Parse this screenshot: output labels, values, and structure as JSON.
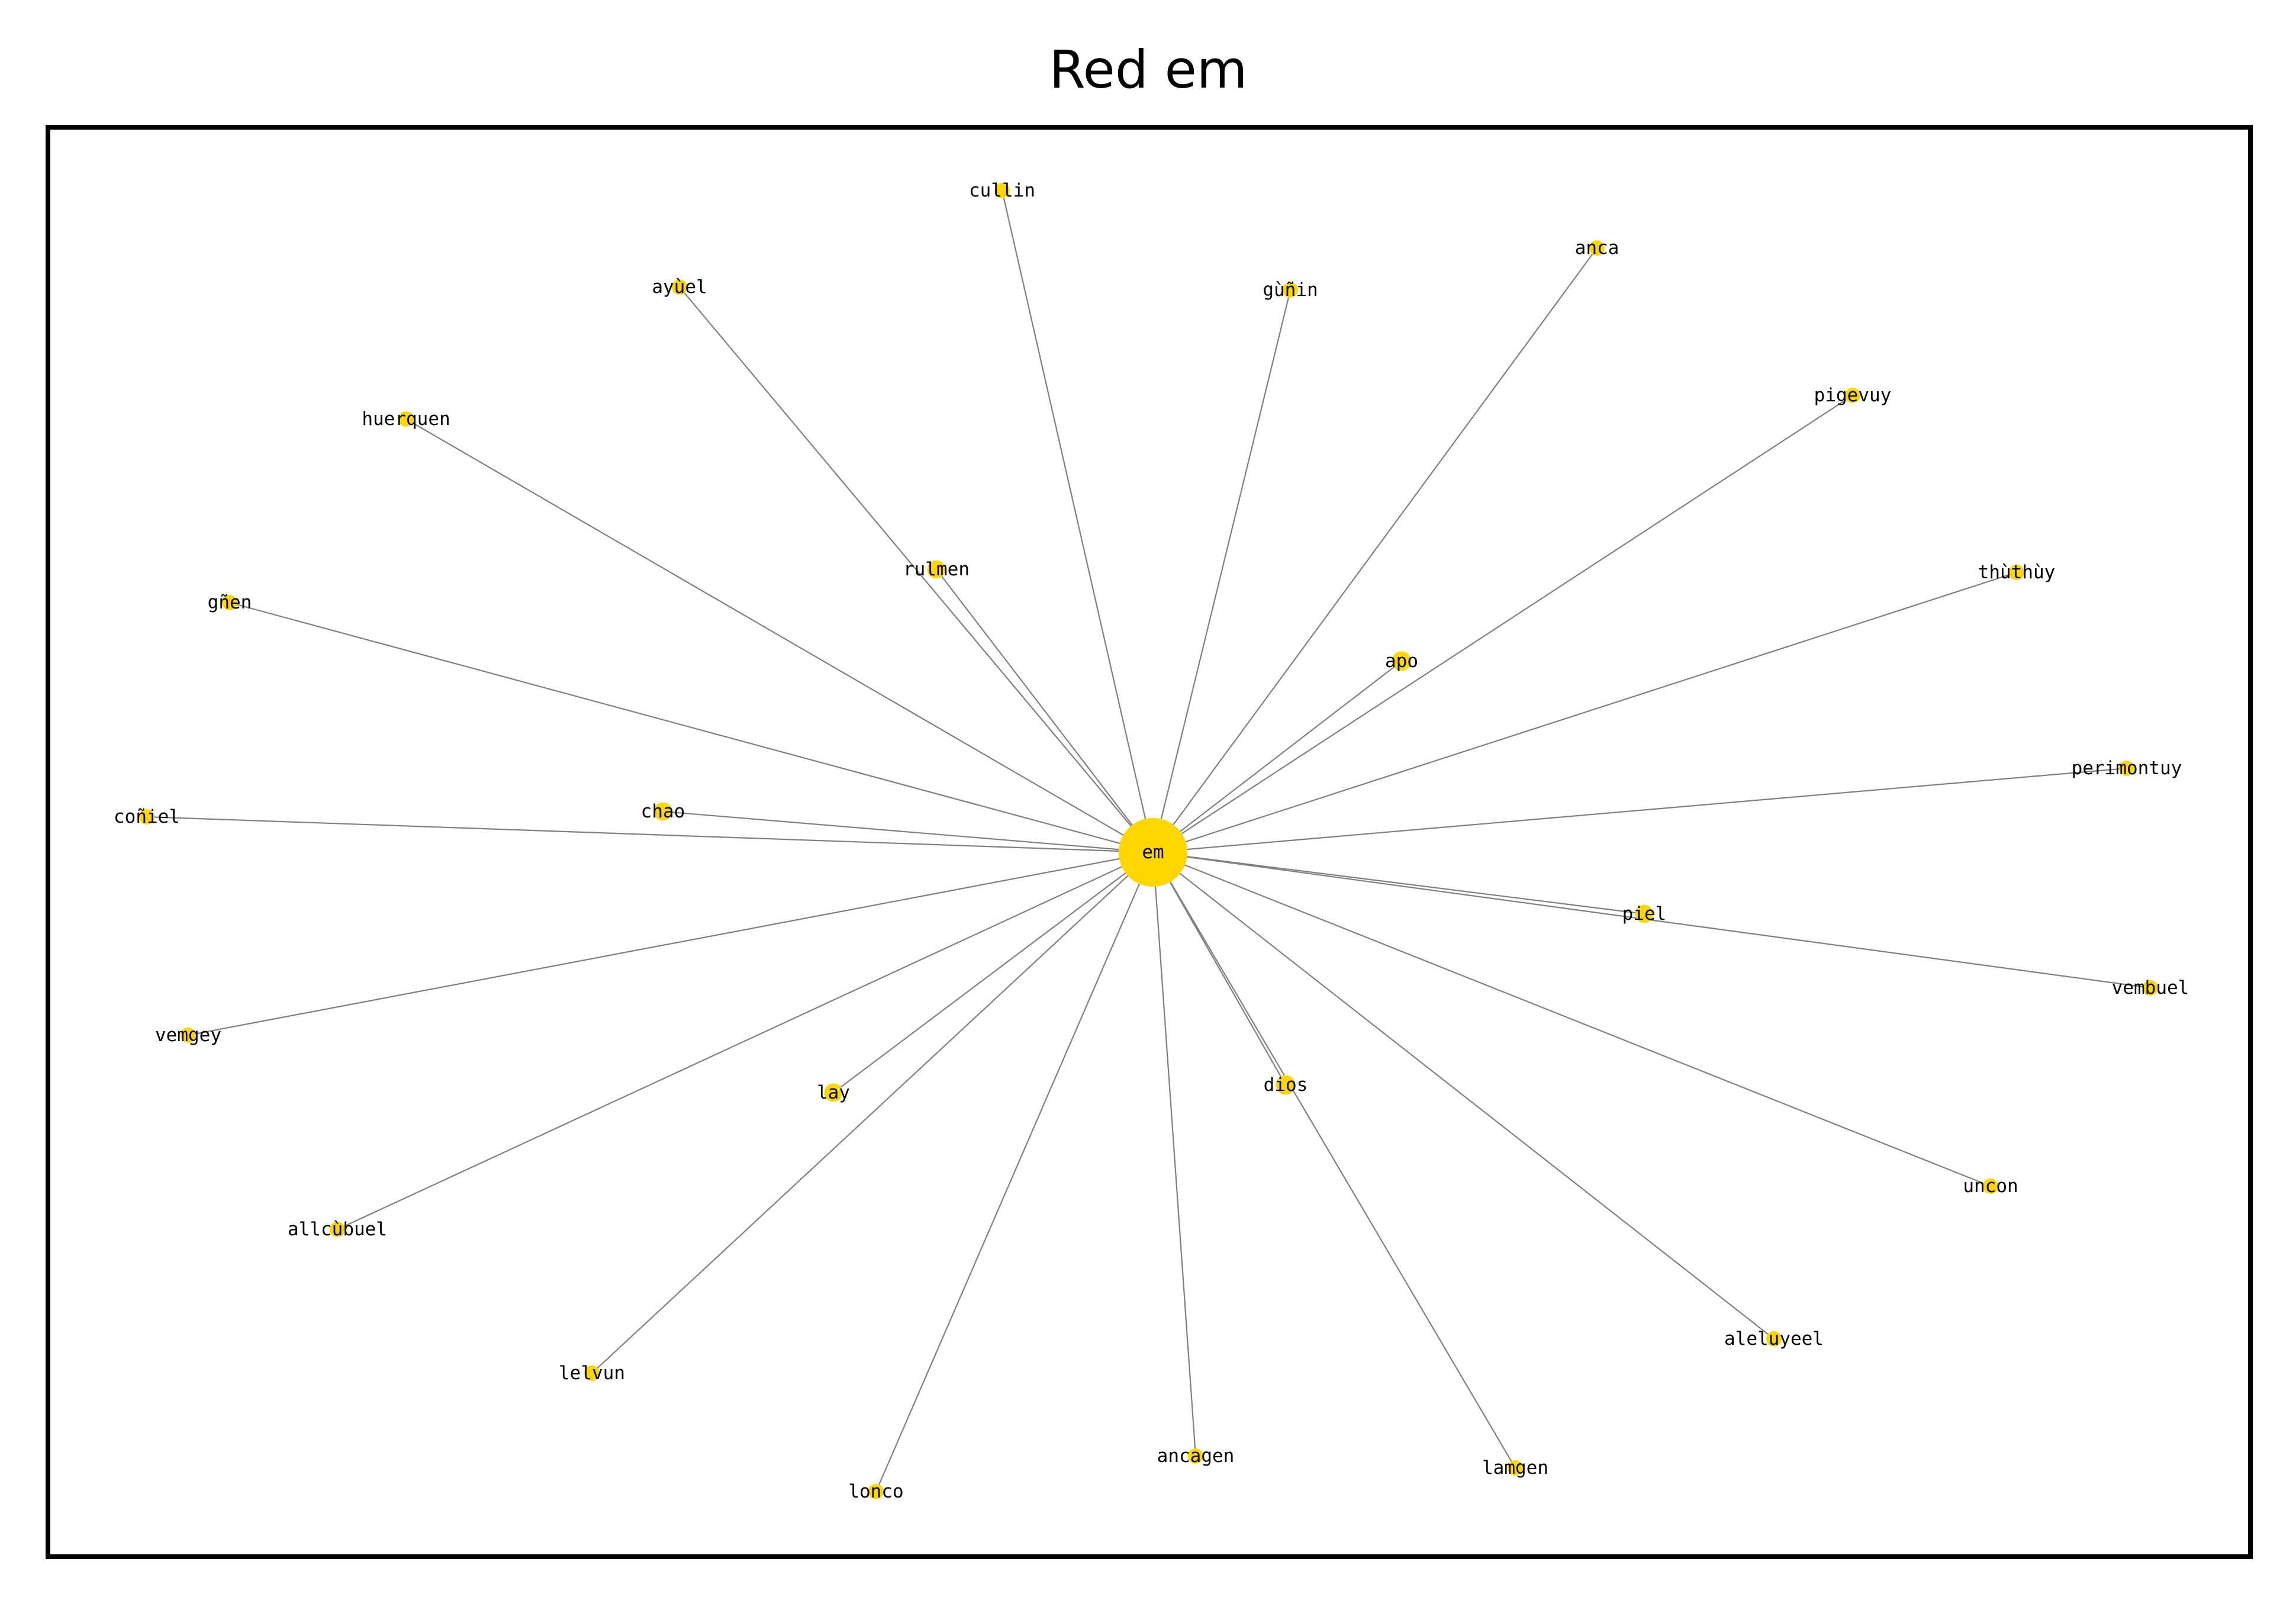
{
  "title": "Red em",
  "colors": {
    "node": "#FFD700",
    "edge": "#808080",
    "frame": "#000000",
    "background": "#ffffff"
  },
  "graph": {
    "center": "em",
    "nodes": [
      {
        "id": "em",
        "label": "em",
        "size": 18
      },
      {
        "id": "cullin",
        "label": "cullin",
        "size": 1
      },
      {
        "id": "ayuel",
        "label": "ayùel",
        "size": 1
      },
      {
        "id": "gunin",
        "label": "gùñin",
        "size": 1
      },
      {
        "id": "anca",
        "label": "anca",
        "size": 1
      },
      {
        "id": "huerquen",
        "label": "huerquen",
        "size": 1
      },
      {
        "id": "pigevuy",
        "label": "pigevuy",
        "size": 1
      },
      {
        "id": "rulmen",
        "label": "rulmen",
        "size": 1.4
      },
      {
        "id": "thuthuy",
        "label": "thùthùy",
        "size": 1
      },
      {
        "id": "gnen",
        "label": "gñen",
        "size": 1
      },
      {
        "id": "apo",
        "label": "apo",
        "size": 1.6
      },
      {
        "id": "perimontuy",
        "label": "perimontuy",
        "size": 1
      },
      {
        "id": "coniel",
        "label": "coñiel",
        "size": 1
      },
      {
        "id": "chao",
        "label": "chao",
        "size": 1.4
      },
      {
        "id": "piel",
        "label": "piel",
        "size": 1.4
      },
      {
        "id": "vembuel",
        "label": "vembuel",
        "size": 1
      },
      {
        "id": "vemgey",
        "label": "vemgey",
        "size": 1
      },
      {
        "id": "lay",
        "label": "lay",
        "size": 1.4
      },
      {
        "id": "dios",
        "label": "dios",
        "size": 1.6
      },
      {
        "id": "allcubuel",
        "label": "allcùbuel",
        "size": 1
      },
      {
        "id": "uncon",
        "label": "uncon",
        "size": 1
      },
      {
        "id": "aleluyeel",
        "label": "aleluyeel",
        "size": 1
      },
      {
        "id": "lelvun",
        "label": "lelvun",
        "size": 1
      },
      {
        "id": "ancagen",
        "label": "ancagen",
        "size": 1
      },
      {
        "id": "lamgen",
        "label": "lamgen",
        "size": 1
      },
      {
        "id": "lonco",
        "label": "lonco",
        "size": 1
      }
    ],
    "edges": [
      [
        "em",
        "cullin"
      ],
      [
        "em",
        "ayuel"
      ],
      [
        "em",
        "gunin"
      ],
      [
        "em",
        "anca"
      ],
      [
        "em",
        "huerquen"
      ],
      [
        "em",
        "pigevuy"
      ],
      [
        "em",
        "rulmen"
      ],
      [
        "em",
        "thuthuy"
      ],
      [
        "em",
        "gnen"
      ],
      [
        "em",
        "apo"
      ],
      [
        "em",
        "perimontuy"
      ],
      [
        "em",
        "coniel"
      ],
      [
        "em",
        "chao"
      ],
      [
        "em",
        "piel"
      ],
      [
        "em",
        "vembuel"
      ],
      [
        "em",
        "vemgey"
      ],
      [
        "em",
        "lay"
      ],
      [
        "em",
        "dios"
      ],
      [
        "em",
        "allcubuel"
      ],
      [
        "em",
        "uncon"
      ],
      [
        "em",
        "aleluyeel"
      ],
      [
        "em",
        "lelvun"
      ],
      [
        "em",
        "ancagen"
      ],
      [
        "em",
        "lamgen"
      ],
      [
        "em",
        "lonco"
      ]
    ]
  }
}
